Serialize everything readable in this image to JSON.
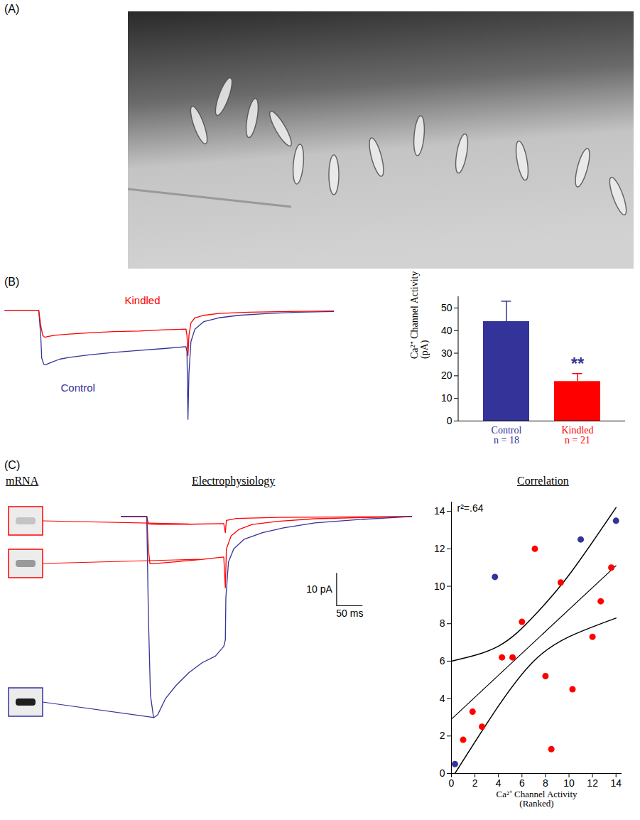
{
  "chart_data": [
    {
      "panel": "(A)",
      "type": "image"
    },
    {
      "panel": "(B)",
      "type": "line",
      "tick_labels": false,
      "xlim": [
        -36,
        296
      ],
      "ylim": [
        -90,
        12
      ],
      "series": [
        {
          "name": "Control",
          "color": "#333399",
          "x": [
            -35,
            -1,
            1,
            2,
            4,
            6,
            10,
            20,
            30,
            50,
            75,
            100,
            125,
            147,
            148,
            149,
            150,
            152,
            156,
            165,
            180,
            200,
            230,
            260,
            296
          ],
          "values": [
            0,
            0,
            -20,
            -38,
            -43,
            -43.5,
            -42,
            -39,
            -37.5,
            -35.5,
            -33.5,
            -32,
            -30.5,
            -29,
            -33,
            -87,
            -50,
            -25,
            -15,
            -9,
            -6,
            -4,
            -2.5,
            -1.5,
            -1
          ]
        },
        {
          "name": "Kindled",
          "color": "#ff0000",
          "x": [
            -35,
            -1,
            1,
            3,
            5,
            8,
            15,
            30,
            50,
            75,
            100,
            125,
            147,
            148,
            149,
            150,
            152,
            156,
            165,
            180,
            210,
            250,
            296
          ],
          "values": [
            0,
            0,
            -12,
            -20,
            -21.5,
            -21,
            -20,
            -19,
            -18,
            -17,
            -16.5,
            -15.5,
            -15,
            -20,
            -36,
            -20,
            -10,
            -6,
            -4,
            -2.5,
            -1.5,
            -1,
            -0.5
          ]
        }
      ]
    },
    {
      "type": "bar",
      "categories": [
        "Control",
        "Kindled"
      ],
      "category_notes": [
        "n = 18",
        "n = 21"
      ],
      "values": [
        44,
        17.5
      ],
      "errors": [
        9,
        3.5
      ],
      "colors": [
        "#333399",
        "#ff0000"
      ],
      "y_label": "Ca²⁺ Channel Activity (pA)",
      "ylim": [
        0,
        55
      ],
      "yticks": [
        0,
        10,
        20,
        30,
        40,
        50
      ],
      "annotations": [
        {
          "category": "Kindled",
          "text": "**"
        }
      ]
    },
    {
      "panel": "(C)",
      "type": "line",
      "title": "Electrophysiology",
      "gel_title": "mRNA",
      "tick_labels": false,
      "xlim": [
        -50,
        506
      ],
      "ylim": [
        -66,
        4
      ],
      "scale_bar": {
        "x": 50,
        "y": 10,
        "x_label": "50 ms",
        "y_label": "10 pA"
      },
      "series": [
        {
          "color": "#ff0000",
          "x": [
            -50,
            -1,
            2,
            20,
            80,
            146,
            149,
            151,
            170,
            250,
            506
          ],
          "values": [
            0,
            0,
            -2.3,
            -2.5,
            -2.4,
            -2.2,
            -5,
            -1.2,
            -0.6,
            -0.3,
            0
          ]
        },
        {
          "color": "#ff0000",
          "x": [
            -50,
            -1,
            2,
            5,
            15,
            50,
            100,
            146,
            149,
            151,
            160,
            175,
            200,
            250,
            320,
            506
          ],
          "values": [
            0,
            0,
            -10,
            -14.5,
            -14.5,
            -14,
            -13.3,
            -12.5,
            -22,
            -10,
            -6,
            -4,
            -2.5,
            -1.5,
            -0.7,
            0
          ]
        },
        {
          "color": "#333399",
          "x": [
            -50,
            -1,
            2,
            6,
            12,
            20,
            35,
            55,
            80,
            105,
            130,
            146,
            149,
            150,
            155,
            165,
            185,
            220,
            260,
            320,
            400,
            506
          ],
          "values": [
            0,
            0,
            -30,
            -55,
            -62,
            -61,
            -56,
            -52,
            -48,
            -45,
            -43,
            -40,
            -38,
            -25,
            -14,
            -10,
            -7,
            -5,
            -3.5,
            -2,
            -1,
            0
          ]
        }
      ]
    },
    {
      "type": "scatter",
      "title": "Correlation",
      "x_label": "Ca²⁺ Channel Activity (Ranked)",
      "xlim": [
        0,
        14.5
      ],
      "ylim": [
        0,
        14.5
      ],
      "xticks": [
        0,
        2,
        4,
        6,
        8,
        10,
        12,
        14
      ],
      "yticks": [
        0,
        2,
        4,
        6,
        8,
        10,
        12,
        14
      ],
      "annotations": [
        "r²=.64"
      ],
      "series": [
        {
          "color": "#333399",
          "x": [
            0.3,
            3.7,
            11,
            14
          ],
          "values": [
            0.5,
            10.5,
            12.5,
            13.5
          ]
        },
        {
          "color": "#ff0000",
          "x": [
            1,
            1.8,
            2.6,
            4.3,
            5.2,
            6,
            7.1,
            8,
            8.5,
            9.3,
            10.3,
            12,
            12.7,
            13.6
          ],
          "values": [
            1.8,
            3.3,
            2.5,
            6.2,
            6.2,
            8.1,
            12,
            5.2,
            1.3,
            10.2,
            4.5,
            7.3,
            9.2,
            11
          ]
        }
      ],
      "fit": {
        "x": [
          0,
          14
        ],
        "values": [
          2.9,
          11.1
        ]
      },
      "confidence_band": {
        "upper": {
          "x": [
            0,
            4,
            7,
            10,
            14
          ],
          "values": [
            6,
            6.8,
            8.4,
            10.6,
            14.2
          ]
        },
        "lower": {
          "x": [
            0.3,
            4,
            7,
            10,
            14
          ],
          "values": [
            0,
            3.6,
            6,
            7.3,
            8.3
          ]
        }
      }
    }
  ]
}
